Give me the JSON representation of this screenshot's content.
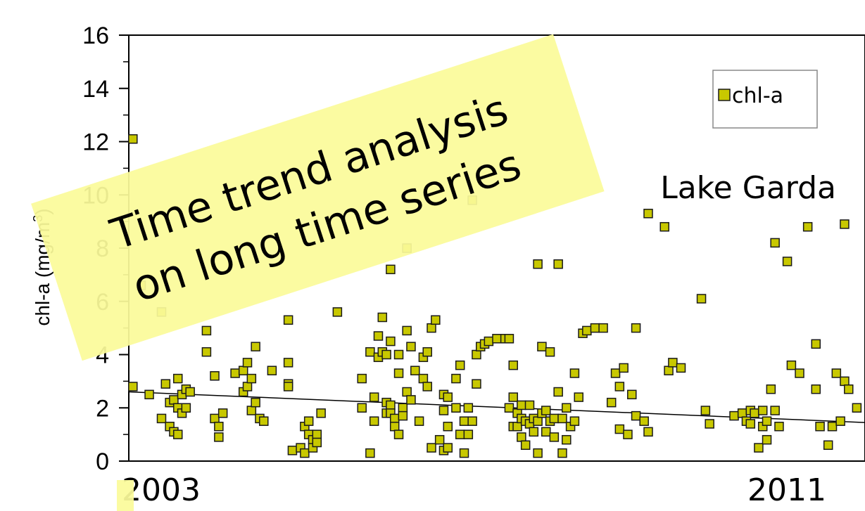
{
  "chart_data": {
    "type": "scatter",
    "title": "",
    "ylabel_main": "chl-a (mg/m",
    "ylabel_sup": "3",
    "ylabel_end": ")",
    "ylim": [
      0,
      16
    ],
    "yticks": [
      "0",
      "2",
      "4",
      "6",
      "8",
      "10",
      "12",
      "14",
      "16"
    ],
    "x_labels": [
      "2003",
      "2011"
    ],
    "xlim": [
      2003.0,
      2012.0
    ],
    "annotation": "Lake Garda",
    "legend": {
      "label": "chl-a",
      "placement": "top-right"
    },
    "marker_color": "#c8c800",
    "marker_edge": "#1a1a1a",
    "trend": {
      "x": [
        2003.0,
        2012.0
      ],
      "y": [
        2.6,
        1.45
      ]
    },
    "series": [
      {
        "name": "chl-a",
        "points": [
          [
            2003.05,
            12.1
          ],
          [
            2003.05,
            2.8
          ],
          [
            2003.15,
            6.6
          ],
          [
            2003.25,
            2.5
          ],
          [
            2003.4,
            5.6
          ],
          [
            2003.4,
            1.6
          ],
          [
            2003.45,
            2.9
          ],
          [
            2003.5,
            2.2
          ],
          [
            2003.5,
            1.3
          ],
          [
            2003.55,
            2.3
          ],
          [
            2003.55,
            1.1
          ],
          [
            2003.6,
            3.1
          ],
          [
            2003.6,
            2.0
          ],
          [
            2003.6,
            1.0
          ],
          [
            2003.65,
            2.5
          ],
          [
            2003.65,
            1.8
          ],
          [
            2003.7,
            2.7
          ],
          [
            2003.7,
            2.0
          ],
          [
            2003.75,
            2.6
          ],
          [
            2003.95,
            4.9
          ],
          [
            2003.95,
            4.1
          ],
          [
            2004.05,
            3.2
          ],
          [
            2004.05,
            1.6
          ],
          [
            2004.1,
            1.3
          ],
          [
            2004.1,
            0.9
          ],
          [
            2004.15,
            1.8
          ],
          [
            2004.3,
            3.3
          ],
          [
            2004.4,
            3.4
          ],
          [
            2004.4,
            2.6
          ],
          [
            2004.45,
            3.7
          ],
          [
            2004.45,
            2.8
          ],
          [
            2004.5,
            3.1
          ],
          [
            2004.5,
            1.9
          ],
          [
            2004.55,
            4.3
          ],
          [
            2004.55,
            2.2
          ],
          [
            2004.6,
            1.6
          ],
          [
            2004.65,
            1.5
          ],
          [
            2004.75,
            3.4
          ],
          [
            2004.95,
            5.3
          ],
          [
            2004.95,
            3.7
          ],
          [
            2004.95,
            2.9
          ],
          [
            2004.95,
            2.8
          ],
          [
            2005.0,
            0.4
          ],
          [
            2005.1,
            0.5
          ],
          [
            2005.15,
            1.3
          ],
          [
            2005.15,
            0.3
          ],
          [
            2005.2,
            1.5
          ],
          [
            2005.2,
            1.0
          ],
          [
            2005.25,
            0.8
          ],
          [
            2005.25,
            0.5
          ],
          [
            2005.3,
            1.0
          ],
          [
            2005.3,
            0.7
          ],
          [
            2005.35,
            1.8
          ],
          [
            2005.55,
            5.6
          ],
          [
            2005.85,
            3.1
          ],
          [
            2005.85,
            2.0
          ],
          [
            2005.95,
            4.1
          ],
          [
            2005.95,
            0.3
          ],
          [
            2006.0,
            2.4
          ],
          [
            2006.0,
            1.5
          ],
          [
            2006.05,
            4.7
          ],
          [
            2006.05,
            3.9
          ],
          [
            2006.1,
            5.4
          ],
          [
            2006.1,
            4.1
          ],
          [
            2006.15,
            4.0
          ],
          [
            2006.15,
            2.2
          ],
          [
            2006.15,
            1.8
          ],
          [
            2006.2,
            7.2
          ],
          [
            2006.2,
            4.5
          ],
          [
            2006.2,
            2.1
          ],
          [
            2006.2,
            1.8
          ],
          [
            2006.25,
            1.6
          ],
          [
            2006.25,
            1.3
          ],
          [
            2006.3,
            4.0
          ],
          [
            2006.3,
            3.3
          ],
          [
            2006.3,
            1.0
          ],
          [
            2006.35,
            2.0
          ],
          [
            2006.35,
            1.7
          ],
          [
            2006.4,
            8.0
          ],
          [
            2006.4,
            4.9
          ],
          [
            2006.4,
            2.6
          ],
          [
            2006.45,
            4.3
          ],
          [
            2006.45,
            2.3
          ],
          [
            2006.5,
            3.4
          ],
          [
            2006.55,
            1.5
          ],
          [
            2006.6,
            3.9
          ],
          [
            2006.6,
            3.1
          ],
          [
            2006.65,
            4.1
          ],
          [
            2006.65,
            2.8
          ],
          [
            2006.7,
            5.0
          ],
          [
            2006.7,
            0.5
          ],
          [
            2006.75,
            5.3
          ],
          [
            2006.8,
            0.8
          ],
          [
            2006.85,
            2.5
          ],
          [
            2006.85,
            1.9
          ],
          [
            2006.85,
            0.4
          ],
          [
            2006.9,
            2.4
          ],
          [
            2006.9,
            1.3
          ],
          [
            2006.9,
            0.5
          ],
          [
            2007.0,
            3.1
          ],
          [
            2007.0,
            2.0
          ],
          [
            2007.05,
            3.6
          ],
          [
            2007.05,
            1.0
          ],
          [
            2007.1,
            1.5
          ],
          [
            2007.1,
            0.3
          ],
          [
            2007.15,
            2.0
          ],
          [
            2007.15,
            1.0
          ],
          [
            2007.2,
            9.8
          ],
          [
            2007.2,
            1.5
          ],
          [
            2007.25,
            4.0
          ],
          [
            2007.25,
            2.9
          ],
          [
            2007.3,
            4.3
          ],
          [
            2007.35,
            4.4
          ],
          [
            2007.4,
            4.5
          ],
          [
            2007.5,
            4.6
          ],
          [
            2007.6,
            4.6
          ],
          [
            2007.65,
            4.6
          ],
          [
            2007.65,
            2.0
          ],
          [
            2007.7,
            3.6
          ],
          [
            2007.7,
            2.4
          ],
          [
            2007.7,
            1.3
          ],
          [
            2007.75,
            1.8
          ],
          [
            2007.75,
            1.3
          ],
          [
            2007.8,
            2.1
          ],
          [
            2007.8,
            1.6
          ],
          [
            2007.8,
            0.9
          ],
          [
            2007.85,
            1.5
          ],
          [
            2007.85,
            0.6
          ],
          [
            2007.9,
            2.1
          ],
          [
            2007.9,
            1.4
          ],
          [
            2007.95,
            1.6
          ],
          [
            2007.95,
            1.1
          ],
          [
            2008.0,
            7.4
          ],
          [
            2008.0,
            1.5
          ],
          [
            2008.0,
            0.3
          ],
          [
            2008.05,
            4.3
          ],
          [
            2008.05,
            1.8
          ],
          [
            2008.1,
            1.9
          ],
          [
            2008.1,
            1.1
          ],
          [
            2008.15,
            4.1
          ],
          [
            2008.15,
            1.5
          ],
          [
            2008.2,
            1.6
          ],
          [
            2008.2,
            0.9
          ],
          [
            2008.25,
            7.4
          ],
          [
            2008.25,
            2.6
          ],
          [
            2008.3,
            1.6
          ],
          [
            2008.3,
            0.3
          ],
          [
            2008.35,
            2.0
          ],
          [
            2008.35,
            0.8
          ],
          [
            2008.4,
            1.3
          ],
          [
            2008.45,
            3.3
          ],
          [
            2008.45,
            1.5
          ],
          [
            2008.5,
            2.4
          ],
          [
            2008.55,
            4.8
          ],
          [
            2008.6,
            4.9
          ],
          [
            2008.7,
            5.0
          ],
          [
            2008.8,
            5.0
          ],
          [
            2008.9,
            2.2
          ],
          [
            2008.95,
            3.3
          ],
          [
            2009.0,
            2.8
          ],
          [
            2009.0,
            1.2
          ],
          [
            2009.05,
            3.5
          ],
          [
            2009.1,
            1.0
          ],
          [
            2009.15,
            2.5
          ],
          [
            2009.2,
            5.0
          ],
          [
            2009.2,
            1.7
          ],
          [
            2009.3,
            1.5
          ],
          [
            2009.35,
            9.3
          ],
          [
            2009.35,
            1.1
          ],
          [
            2009.55,
            8.8
          ],
          [
            2009.6,
            3.4
          ],
          [
            2009.65,
            3.7
          ],
          [
            2009.75,
            3.5
          ],
          [
            2010.0,
            6.1
          ],
          [
            2010.05,
            1.9
          ],
          [
            2010.1,
            1.4
          ],
          [
            2010.4,
            1.7
          ],
          [
            2010.5,
            1.8
          ],
          [
            2010.55,
            1.5
          ],
          [
            2010.6,
            1.9
          ],
          [
            2010.6,
            1.4
          ],
          [
            2010.65,
            1.8
          ],
          [
            2010.7,
            0.5
          ],
          [
            2010.75,
            1.9
          ],
          [
            2010.75,
            1.3
          ],
          [
            2010.8,
            1.5
          ],
          [
            2010.8,
            0.8
          ],
          [
            2010.85,
            2.7
          ],
          [
            2010.9,
            8.2
          ],
          [
            2010.9,
            1.9
          ],
          [
            2010.95,
            1.3
          ],
          [
            2011.05,
            7.5
          ],
          [
            2011.1,
            3.6
          ],
          [
            2011.2,
            3.3
          ],
          [
            2011.3,
            8.8
          ],
          [
            2011.4,
            4.4
          ],
          [
            2011.4,
            2.7
          ],
          [
            2011.45,
            1.3
          ],
          [
            2011.55,
            0.6
          ],
          [
            2011.6,
            1.3
          ],
          [
            2011.65,
            3.3
          ],
          [
            2011.7,
            1.5
          ],
          [
            2011.75,
            8.9
          ],
          [
            2011.75,
            3.0
          ],
          [
            2011.8,
            2.7
          ],
          [
            2011.9,
            2.0
          ]
        ]
      }
    ]
  },
  "banner": {
    "line1": "Time trend analysis",
    "line2": "on long time series"
  }
}
